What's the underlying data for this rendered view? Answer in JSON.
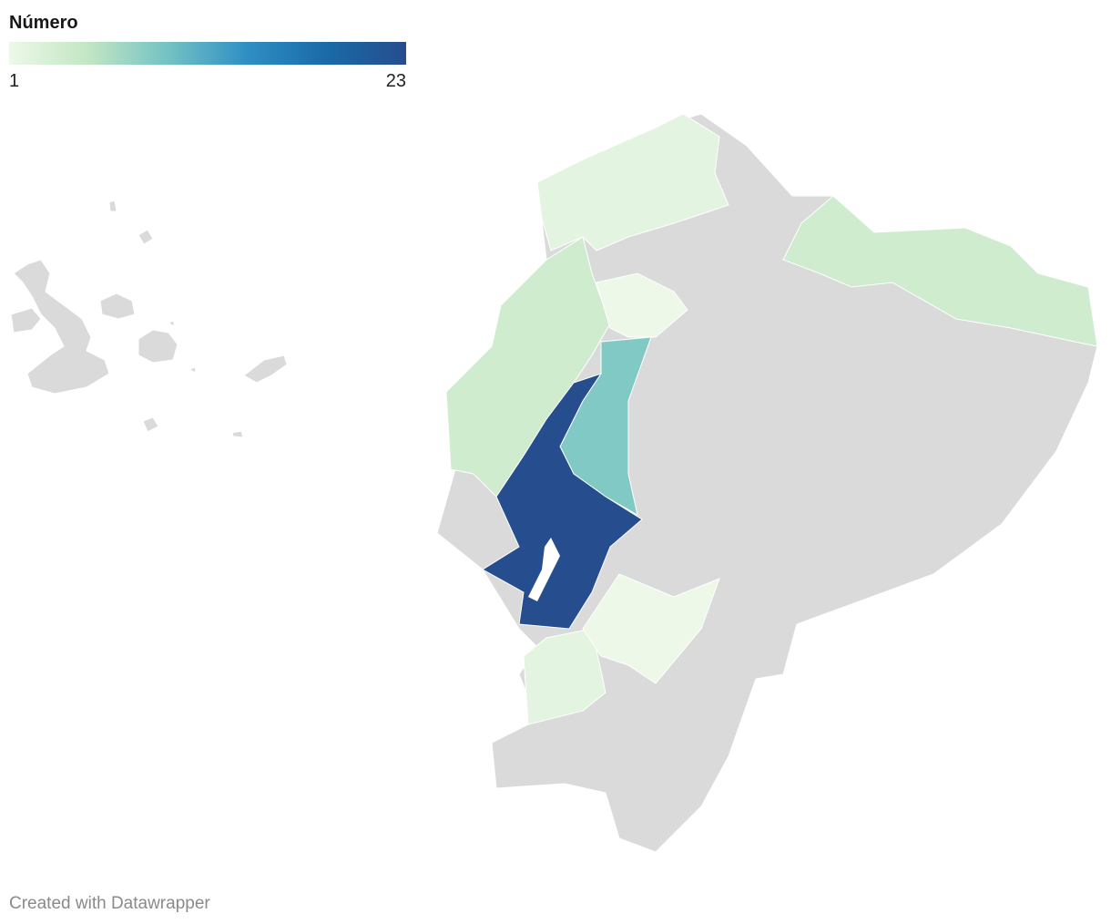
{
  "legend": {
    "title": "Número",
    "min": 1,
    "max": 23,
    "colors": [
      "#edf8e9",
      "#c2e6c3",
      "#73c2c4",
      "#2f8fc4",
      "#1a6aa8",
      "#264d8e"
    ]
  },
  "regions": {
    "values": [
      2,
      4,
      1,
      9,
      23,
      4,
      2,
      1
    ]
  },
  "footer": "Created with Datawrapper"
}
